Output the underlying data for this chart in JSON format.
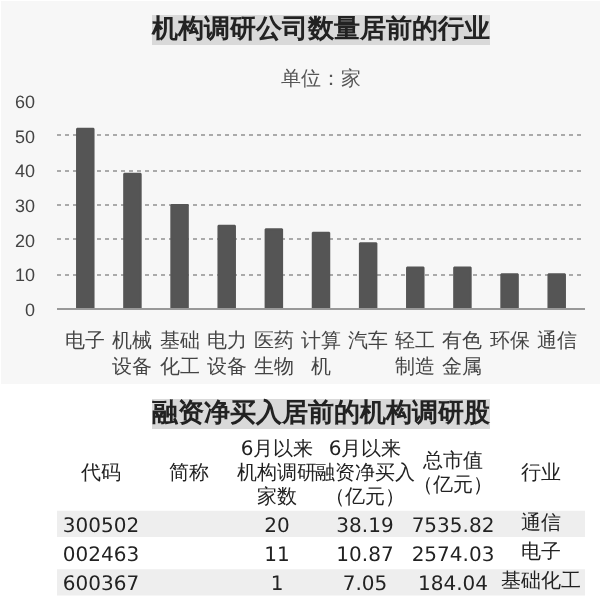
{
  "chart_data": [
    {
      "type": "bar",
      "title": "机构调研公司数量居前的行业",
      "subtitle": "单位：家",
      "categories": [
        "电子",
        "机械设备",
        "基础化工",
        "电力设备",
        "医药生物",
        "计算机",
        "汽车",
        "轻工制造",
        "有色金属",
        "环保",
        "通信"
      ],
      "values": [
        52,
        39,
        30,
        24,
        23,
        22,
        19,
        12,
        12,
        10,
        10
      ],
      "color": "#555555",
      "ylim": [
        0,
        60
      ],
      "yticks": [
        0,
        10,
        20,
        30,
        40,
        50,
        60
      ],
      "grid": "y"
    },
    {
      "type": "other",
      "title": "融资净买入居前的机构调研股",
      "categories": [
        "代码",
        "简称",
        "6月以来机构调研家数",
        "6月以来融资净买入（亿元）",
        "总市值（亿元）",
        "行业"
      ],
      "cell_labels": [
        [
          "300502",
          null,
          "20",
          "38.19",
          "7535.82",
          "通信"
        ],
        [
          "002463",
          null,
          "11",
          "10.87",
          "2574.03",
          "电子"
        ],
        [
          "600367",
          null,
          "1",
          "7.05",
          "184.04",
          "基础化工"
        ]
      ]
    }
  ]
}
